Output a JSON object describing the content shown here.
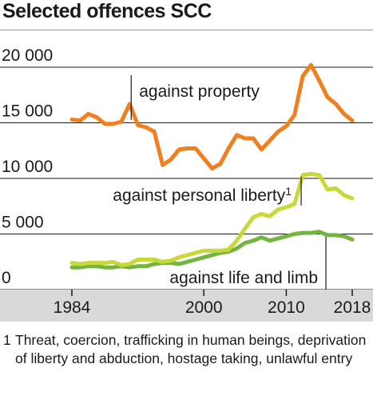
{
  "title": "Selected offences SCC",
  "footnote": {
    "marker": "1",
    "text": "Threat, coercion, trafficking in human beings, deprivation of liberty and abduction, hostage taking, unlawful entry"
  },
  "colors": {
    "property": "#f07f1e",
    "liberty": "#c8d838",
    "life": "#74b440",
    "grid": "#1a1a1a",
    "axis_band": "#d9d9d9",
    "text": "#1a1a1a"
  },
  "chart_data": {
    "type": "line",
    "title": "Selected offences SCC",
    "xlabel": "",
    "ylabel": "",
    "xlim": [
      1984,
      2018
    ],
    "ylim": [
      0,
      20000
    ],
    "x_ticks": [
      "1984",
      "2000",
      "2010",
      "2018"
    ],
    "y_ticks": [
      "0",
      "5 000",
      "10 000",
      "15 000",
      "20 000"
    ],
    "grid": "horizontal",
    "x": [
      1984,
      1985,
      1986,
      1987,
      1988,
      1989,
      1990,
      1991,
      1992,
      1993,
      1994,
      1995,
      1996,
      1997,
      1998,
      1999,
      2000,
      2001,
      2002,
      2003,
      2004,
      2005,
      2006,
      2007,
      2008,
      2009,
      2010,
      2011,
      2012,
      2013,
      2014,
      2015,
      2016,
      2017,
      2018
    ],
    "series": [
      {
        "name": "against property",
        "color": "#f07f1e",
        "values": [
          15300,
          15200,
          15800,
          15500,
          14900,
          14900,
          15100,
          16700,
          14800,
          14600,
          14200,
          11200,
          11700,
          12600,
          12700,
          12700,
          11800,
          10900,
          11300,
          12700,
          13900,
          13600,
          13600,
          12600,
          13400,
          14200,
          14700,
          15700,
          19200,
          20200,
          18800,
          17300,
          16700,
          15800,
          15200
        ]
      },
      {
        "name": "against personal liberty",
        "label_marker": "1",
        "color": "#c8d838",
        "values": [
          2400,
          2300,
          2400,
          2400,
          2400,
          2500,
          2200,
          2300,
          2700,
          2700,
          2700,
          2500,
          2600,
          2900,
          3100,
          3300,
          3500,
          3500,
          3500,
          3600,
          4400,
          5500,
          6500,
          6800,
          6600,
          7200,
          7400,
          7700,
          10300,
          10400,
          10300,
          9000,
          9100,
          8500,
          8200
        ]
      },
      {
        "name": "against life and limb",
        "color": "#74b440",
        "values": [
          2000,
          2000,
          2100,
          2100,
          2000,
          2000,
          2100,
          2000,
          2100,
          2100,
          2300,
          2400,
          2400,
          2300,
          2500,
          2700,
          2900,
          3100,
          3300,
          3400,
          3700,
          4200,
          4400,
          4700,
          4400,
          4600,
          4800,
          5000,
          5100,
          5100,
          5200,
          4900,
          4900,
          4800,
          4500
        ]
      }
    ],
    "annotations": [
      {
        "text": "against property",
        "series": "against property",
        "x": 1991
      },
      {
        "text": "against personal liberty",
        "marker": "1",
        "series": "against personal liberty",
        "x": 2012
      },
      {
        "text": "against life and limb",
        "series": "against life and limb",
        "x": 2015
      }
    ]
  }
}
